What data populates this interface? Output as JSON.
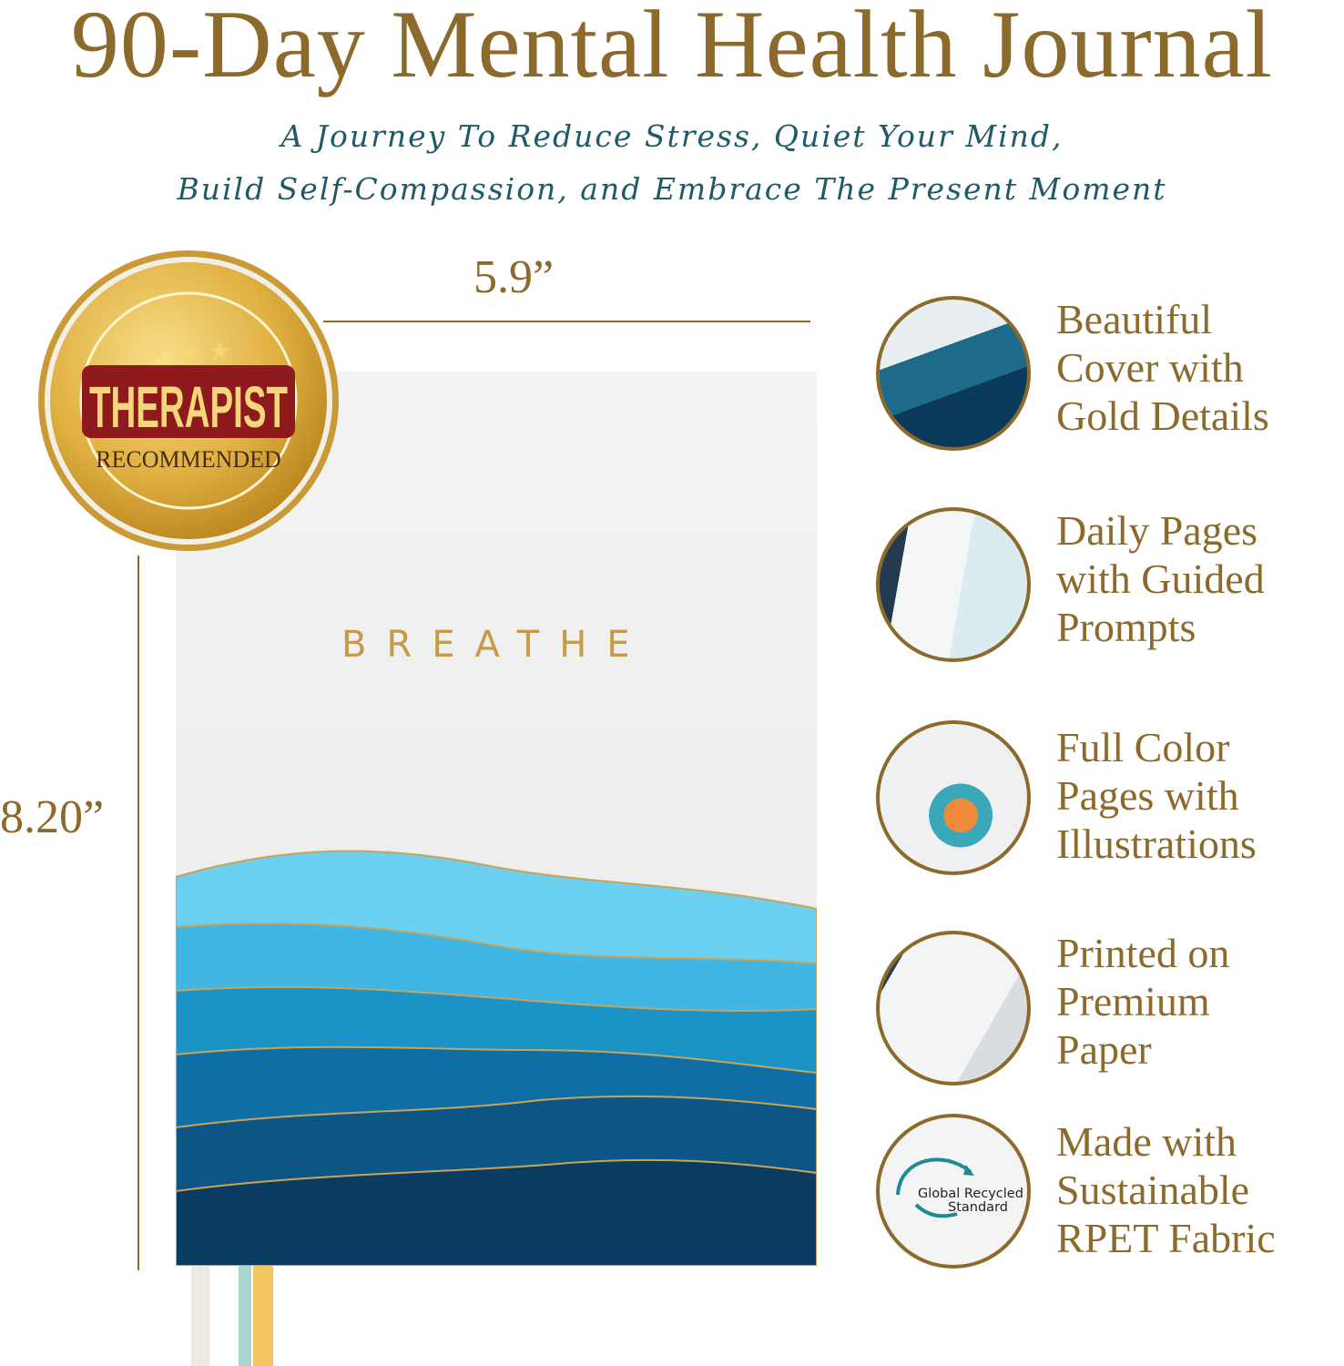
{
  "header": {
    "title": "90-Day Mental Health Journal",
    "subtitle_line1": "A Journey To Reduce Stress, Quiet Your Mind,",
    "subtitle_line2": "Build Self-Compassion, and Embrace The Present Moment"
  },
  "dimensions": {
    "width": "5.9”",
    "height": "8.20”"
  },
  "badge": {
    "main": "THERAPIST",
    "sub": "RECOMMENDED"
  },
  "book": {
    "cover_word": "BREATHE"
  },
  "features": [
    {
      "lines": [
        "Beautiful",
        "Cover with",
        "Gold Details"
      ]
    },
    {
      "lines": [
        "Daily Pages",
        "with Guided",
        "Prompts"
      ]
    },
    {
      "lines": [
        "Full Color",
        "Pages with",
        "Illustrations"
      ]
    },
    {
      "lines": [
        "Printed on",
        "Premium",
        "Paper"
      ]
    },
    {
      "lines": [
        "Made with",
        "Sustainable",
        "RPET Fabric"
      ]
    }
  ],
  "recycle_logo": {
    "line1": "Global Recycled",
    "line2": "Standard"
  },
  "colors": {
    "gold": "#8c6a2c",
    "teal": "#1f5a66"
  }
}
